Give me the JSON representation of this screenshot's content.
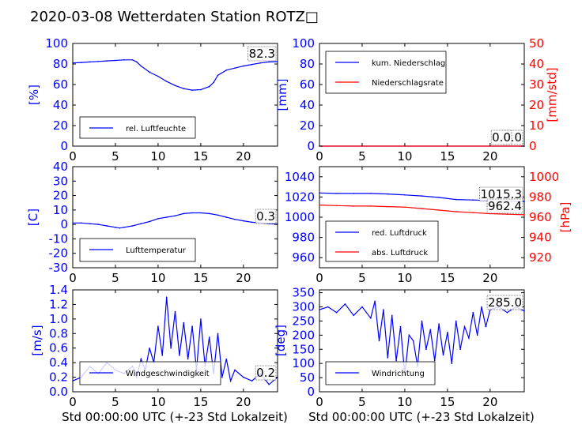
{
  "page_title": "2020-03-08 Wetterdaten Station ROTZ□",
  "colors": {
    "blue": "#0000ff",
    "red": "#ff0000",
    "black": "#000000"
  },
  "chart_data": [
    {
      "id": "humidity",
      "type": "line",
      "ylabel": "[%]",
      "xlabel": "",
      "xlim": [
        0,
        24
      ],
      "xticks": [
        0,
        5,
        10,
        15,
        20
      ],
      "ylim": [
        0,
        100
      ],
      "yticks": [
        0,
        20,
        40,
        60,
        80,
        100
      ],
      "last_value": "82.3",
      "series": [
        {
          "name": "rel. Luftfeuchte",
          "color": "#0000ff",
          "x": [
            0,
            1,
            2,
            3,
            4,
            5,
            6,
            7,
            7.5,
            8,
            9,
            10,
            11,
            12,
            13,
            14,
            15,
            16,
            16.5,
            17,
            18,
            19,
            20,
            21,
            22,
            23,
            24
          ],
          "y": [
            81,
            81.5,
            82,
            82.5,
            83,
            83.5,
            84,
            84,
            82,
            78,
            72,
            68,
            63,
            59,
            56,
            54.5,
            55,
            58,
            62,
            69,
            74,
            76,
            78,
            79.5,
            81,
            82,
            82.3
          ]
        }
      ]
    },
    {
      "id": "precipitation",
      "type": "line",
      "ylabel": "[mm]",
      "y2label": "[mm/std]",
      "xlim": [
        0,
        24
      ],
      "xticks": [
        0,
        5,
        10,
        15,
        20
      ],
      "ylim": [
        0,
        100
      ],
      "yticks": [
        0,
        20,
        40,
        60,
        80,
        100
      ],
      "y2lim": [
        0,
        50
      ],
      "y2ticks": [
        0,
        10,
        20,
        30,
        40,
        50
      ],
      "last_values": [
        "0.0",
        "0.0"
      ],
      "series": [
        {
          "name": "kum. Niederschlag",
          "color": "#0000ff",
          "axis": "left",
          "x": [
            0,
            24
          ],
          "y": [
            0,
            0
          ]
        },
        {
          "name": "Niederschlagsrate",
          "color": "#ff0000",
          "axis": "right",
          "x": [
            0,
            24
          ],
          "y": [
            0,
            0
          ]
        }
      ]
    },
    {
      "id": "temperature",
      "type": "line",
      "ylabel": "[C]",
      "xlim": [
        0,
        24
      ],
      "xticks": [
        0,
        5,
        10,
        15,
        20
      ],
      "ylim": [
        -30,
        40
      ],
      "yticks": [
        -30,
        -20,
        -10,
        0,
        10,
        20,
        30,
        40
      ],
      "last_value": "0.3",
      "series": [
        {
          "name": "Lufttemperatur",
          "color": "#0000ff",
          "x": [
            0,
            1,
            2,
            3,
            4,
            5,
            5.5,
            6,
            7,
            8,
            9,
            10,
            11,
            12,
            13,
            14,
            15,
            16,
            17,
            18,
            19,
            20,
            21,
            22,
            23,
            24
          ],
          "y": [
            1,
            1,
            0.5,
            0,
            -1,
            -2,
            -2.5,
            -2,
            -1,
            0.5,
            2,
            4,
            5,
            6,
            7.5,
            8,
            8,
            7.5,
            6.5,
            5,
            3.5,
            2.5,
            1.5,
            1,
            0.5,
            0.3
          ]
        }
      ]
    },
    {
      "id": "pressure",
      "type": "line",
      "ylabel": "",
      "y2label": "[hPa]",
      "xlim": [
        0,
        24
      ],
      "xticks": [
        0,
        5,
        10,
        15,
        20
      ],
      "ylim": [
        950,
        1050
      ],
      "yticks": [
        960,
        980,
        1000,
        1020,
        1040
      ],
      "y2lim": [
        910,
        1010
      ],
      "y2ticks": [
        920,
        940,
        960,
        980,
        1000
      ],
      "last_values": [
        "1015.3",
        "962.4"
      ],
      "series": [
        {
          "name": "red. Luftdruck",
          "color": "#0000ff",
          "axis": "left",
          "x": [
            0,
            2,
            4,
            6,
            8,
            10,
            12,
            14,
            16,
            18,
            20,
            22,
            24
          ],
          "y": [
            1024,
            1023.5,
            1023.5,
            1023.5,
            1023,
            1022,
            1021,
            1019.5,
            1017.5,
            1017,
            1016.5,
            1016,
            1015.3
          ]
        },
        {
          "name": "abs. Luftdruck",
          "color": "#ff0000",
          "axis": "right",
          "x": [
            0,
            2,
            4,
            6,
            8,
            10,
            12,
            14,
            16,
            18,
            20,
            22,
            24
          ],
          "y": [
            972,
            971.5,
            971,
            971,
            970.5,
            970,
            968.5,
            967,
            965.5,
            964.5,
            963.5,
            963,
            962.4
          ]
        }
      ]
    },
    {
      "id": "windspeed",
      "type": "line",
      "ylabel": "[m/s]",
      "xlabel": "Std 00:00:00 UTC (+-23 Std Lokalzeit)",
      "xlim": [
        0,
        24
      ],
      "xticks": [
        0,
        5,
        10,
        15,
        20
      ],
      "ylim": [
        0,
        1.4
      ],
      "yticks": [
        0.0,
        0.2,
        0.4,
        0.6,
        0.8,
        1.0,
        1.2,
        1.4
      ],
      "ytick_labels": [
        "0.0",
        "0.2",
        "0.4",
        "0.6",
        "0.8",
        "1.0",
        "1.2",
        "1.4"
      ],
      "last_value": "0.2",
      "series": [
        {
          "name": "Windgeschwindigkeit",
          "color": "#0000ff",
          "x": [
            0,
            1,
            2,
            3,
            4,
            5,
            6,
            7,
            7.5,
            8,
            8.5,
            9,
            9.5,
            10,
            10.5,
            11,
            11.5,
            12,
            12.5,
            13,
            13.5,
            14,
            14.5,
            15,
            15.5,
            16,
            16.5,
            17,
            17.5,
            18,
            18.5,
            19,
            20,
            21,
            22,
            23,
            24
          ],
          "y": [
            0.15,
            0.2,
            0.35,
            0.25,
            0.4,
            0.3,
            0.25,
            0.35,
            0.2,
            0.45,
            0.3,
            0.6,
            0.4,
            0.9,
            0.5,
            1.3,
            0.6,
            1.1,
            0.5,
            0.95,
            0.45,
            0.9,
            0.3,
            1.0,
            0.35,
            0.75,
            0.25,
            0.8,
            0.2,
            0.45,
            0.15,
            0.3,
            0.2,
            0.15,
            0.25,
            0.1,
            0.2
          ]
        }
      ]
    },
    {
      "id": "winddirection",
      "type": "line",
      "ylabel": "[deg]",
      "xlabel": "Std 00:00:00 UTC (+-23 Std Lokalzeit)",
      "xlim": [
        0,
        24
      ],
      "xticks": [
        0,
        5,
        10,
        15,
        20
      ],
      "ylim": [
        0,
        360
      ],
      "yticks": [
        0,
        50,
        100,
        150,
        200,
        250,
        300,
        350
      ],
      "last_value": "285.0",
      "series": [
        {
          "name": "Windrichtung",
          "color": "#0000ff",
          "x": [
            0,
            1,
            2,
            3,
            4,
            5,
            6,
            6.5,
            7,
            7.5,
            8,
            8.5,
            9,
            9.5,
            10,
            10.5,
            11,
            11.5,
            12,
            12.5,
            13,
            13.5,
            14,
            14.5,
            15,
            15.5,
            16,
            16.5,
            17,
            17.5,
            18,
            18.5,
            19,
            19.5,
            20,
            21,
            22,
            23,
            24
          ],
          "y": [
            290,
            300,
            280,
            310,
            270,
            300,
            260,
            320,
            180,
            290,
            120,
            270,
            110,
            230,
            60,
            200,
            180,
            90,
            250,
            150,
            220,
            110,
            240,
            130,
            210,
            100,
            250,
            150,
            230,
            190,
            280,
            200,
            300,
            230,
            290,
            300,
            280,
            300,
            285
          ]
        }
      ]
    }
  ]
}
